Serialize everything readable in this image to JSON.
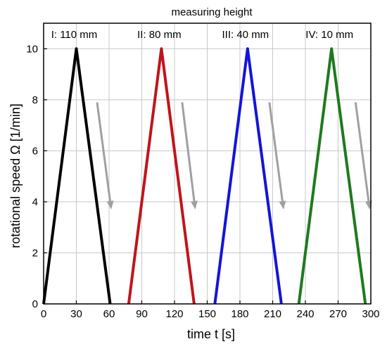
{
  "chart_data": {
    "type": "line",
    "title": "measuring height",
    "xlabel": "time t [s]",
    "ylabel": "rotational speed Ω [1/min]",
    "xlim": [
      0,
      300
    ],
    "ylim": [
      0,
      11
    ],
    "xticks": [
      0,
      30,
      60,
      90,
      120,
      150,
      180,
      210,
      240,
      270,
      300
    ],
    "yticks": [
      0,
      2,
      4,
      6,
      8,
      10
    ],
    "grid": true,
    "series": [
      {
        "name": "I: 110 mm",
        "color": "#000000",
        "x": [
          0,
          30,
          61
        ],
        "y": [
          0,
          10,
          0
        ]
      },
      {
        "name": "II: 80 mm",
        "color": "#c0141c",
        "x": [
          78,
          108,
          138
        ],
        "y": [
          0,
          10,
          0
        ]
      },
      {
        "name": "III: 40 mm",
        "color": "#1414d8",
        "x": [
          157,
          187,
          218
        ],
        "y": [
          0,
          10,
          0
        ]
      },
      {
        "name": "IV: 10 mm",
        "color": "#1e7a1e",
        "x": [
          234,
          264,
          295
        ],
        "y": [
          0,
          10,
          0
        ]
      }
    ],
    "arrows": [
      {
        "x1": 49,
        "y1": 7.9,
        "x2": 62,
        "y2": 3.7
      },
      {
        "x1": 127,
        "y1": 7.9,
        "x2": 139,
        "y2": 3.7
      },
      {
        "x1": 207,
        "y1": 7.9,
        "x2": 220,
        "y2": 3.7
      },
      {
        "x1": 286,
        "y1": 7.9,
        "x2": 299,
        "y2": 3.7
      }
    ],
    "arrow_color": "#a0a0a0"
  }
}
